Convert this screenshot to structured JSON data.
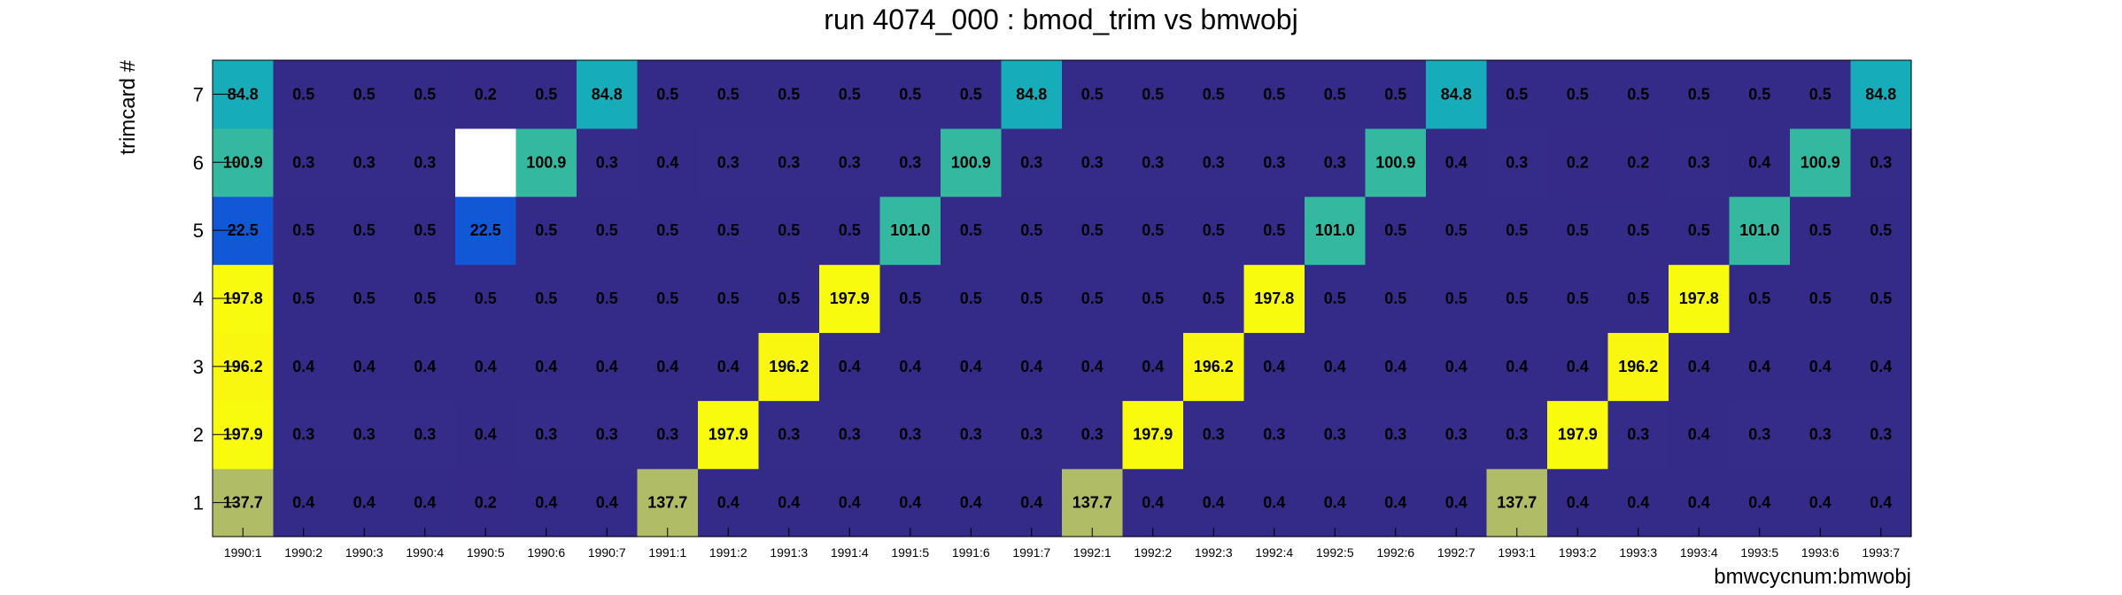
{
  "chart_data": {
    "type": "heatmap",
    "title": "run 4074_000 : bmod_trim vs bmwobj",
    "xlabel": "bmwcycnum:bmwobj",
    "ylabel": "trimcard #",
    "x_categories": [
      "1990:1",
      "1990:2",
      "1990:3",
      "1990:4",
      "1990:5",
      "1990:6",
      "1990:7",
      "1991:1",
      "1991:2",
      "1991:3",
      "1991:4",
      "1991:5",
      "1991:6",
      "1991:7",
      "1992:1",
      "1992:2",
      "1992:3",
      "1992:4",
      "1992:5",
      "1992:6",
      "1992:7",
      "1993:1",
      "1993:2",
      "1993:3",
      "1993:4",
      "1993:5",
      "1993:6",
      "1993:7"
    ],
    "y_categories": [
      "1",
      "2",
      "3",
      "4",
      "5",
      "6",
      "7"
    ],
    "values": [
      [
        137.7,
        197.9,
        196.2,
        197.8,
        22.5,
        100.9,
        84.8
      ],
      [
        0.4,
        0.3,
        0.4,
        0.5,
        0.5,
        0.3,
        0.5
      ],
      [
        0.4,
        0.3,
        0.4,
        0.5,
        0.5,
        0.3,
        0.5
      ],
      [
        0.4,
        0.3,
        0.4,
        0.5,
        0.5,
        0.3,
        0.5
      ],
      [
        0.2,
        0.4,
        0.4,
        0.5,
        22.5,
        0.0,
        0.2
      ],
      [
        0.4,
        0.3,
        0.4,
        0.5,
        0.5,
        100.9,
        0.5
      ],
      [
        0.4,
        0.3,
        0.4,
        0.5,
        0.5,
        0.3,
        84.8
      ],
      [
        137.7,
        0.3,
        0.4,
        0.5,
        0.5,
        0.4,
        0.5
      ],
      [
        0.4,
        197.9,
        0.4,
        0.5,
        0.5,
        0.3,
        0.5
      ],
      [
        0.4,
        0.3,
        196.2,
        0.5,
        0.5,
        0.3,
        0.5
      ],
      [
        0.4,
        0.3,
        0.4,
        197.9,
        0.5,
        0.3,
        0.5
      ],
      [
        0.4,
        0.3,
        0.4,
        0.5,
        101.0,
        0.3,
        0.5
      ],
      [
        0.4,
        0.3,
        0.4,
        0.5,
        0.5,
        100.9,
        0.5
      ],
      [
        0.4,
        0.3,
        0.4,
        0.5,
        0.5,
        0.3,
        84.8
      ],
      [
        137.7,
        0.3,
        0.4,
        0.5,
        0.5,
        0.3,
        0.5
      ],
      [
        0.4,
        197.9,
        0.4,
        0.5,
        0.5,
        0.3,
        0.5
      ],
      [
        0.4,
        0.3,
        196.2,
        0.5,
        0.5,
        0.3,
        0.5
      ],
      [
        0.4,
        0.3,
        0.4,
        197.8,
        0.5,
        0.3,
        0.5
      ],
      [
        0.4,
        0.3,
        0.4,
        0.5,
        101.0,
        0.3,
        0.5
      ],
      [
        0.4,
        0.3,
        0.4,
        0.5,
        0.5,
        100.9,
        0.5
      ],
      [
        0.4,
        0.3,
        0.4,
        0.5,
        0.5,
        0.4,
        84.8
      ],
      [
        137.7,
        0.3,
        0.4,
        0.5,
        0.5,
        0.3,
        0.5
      ],
      [
        0.4,
        197.9,
        0.4,
        0.5,
        0.5,
        0.2,
        0.5
      ],
      [
        0.4,
        0.3,
        196.2,
        0.5,
        0.5,
        0.2,
        0.5
      ],
      [
        0.4,
        0.4,
        0.4,
        197.8,
        0.5,
        0.3,
        0.5
      ],
      [
        0.4,
        0.3,
        0.4,
        0.5,
        101.0,
        0.4,
        0.5
      ],
      [
        0.4,
        0.3,
        0.4,
        0.5,
        0.5,
        100.9,
        0.5
      ],
      [
        0.4,
        0.3,
        0.4,
        0.5,
        0.5,
        0.3,
        84.8
      ]
    ],
    "value_labels_shown": true,
    "empty_cells": [
      [
        4,
        5
      ]
    ],
    "color_scale": {
      "name": "kBird",
      "stops": [
        "#352a87",
        "#0f5cdd",
        "#1481d6",
        "#06a4ca",
        "#2eb7a4",
        "#87bf77",
        "#d1bb59",
        "#fec832",
        "#f9fb0e"
      ]
    },
    "grid": false,
    "legend": "none"
  }
}
